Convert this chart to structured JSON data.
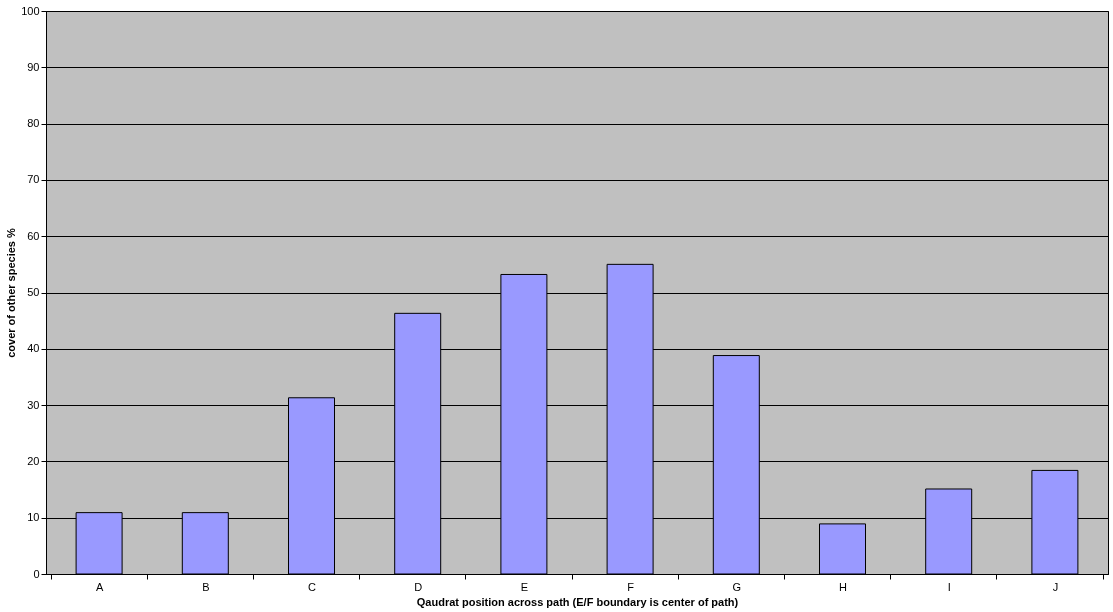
{
  "chart_data": {
    "type": "bar",
    "xlabel": "Qaudrat position across path (E/F boundary is center of path)",
    "ylabel": "cover of other species %",
    "categories": [
      "A",
      "B",
      "C",
      "D",
      "E",
      "F",
      "G",
      "H",
      "I",
      "J"
    ],
    "values": [
      10.9,
      10.9,
      31.3,
      46.3,
      53.2,
      55.0,
      38.8,
      8.9,
      15.1,
      18.4
    ],
    "color": "#9999ff",
    "ylim": [
      0,
      100
    ],
    "yticks": [
      0,
      10,
      20,
      30,
      40,
      50,
      60,
      70,
      80,
      90,
      100
    ],
    "grid": "y"
  }
}
